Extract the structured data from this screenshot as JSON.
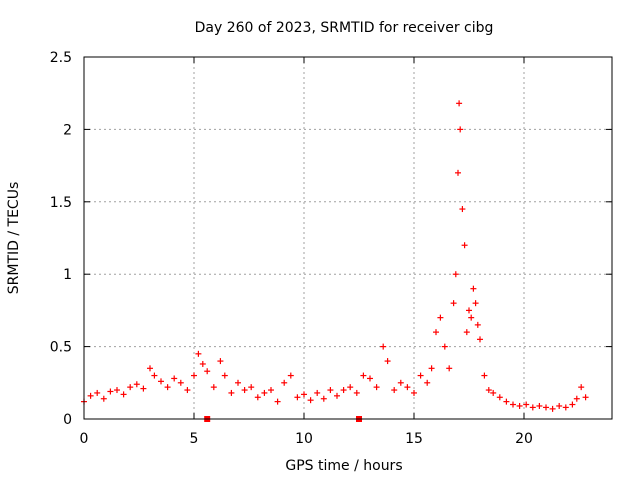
{
  "chart_data": {
    "type": "scatter",
    "title": "Day 260 of 2023, SRMTID for receiver cibg",
    "xlabel": "GPS time / hours",
    "ylabel": "SRMTID / TECUs",
    "xlim": [
      0,
      24
    ],
    "ylim": [
      0,
      2.5
    ],
    "xticks": [
      0,
      5,
      10,
      15,
      20
    ],
    "yticks": [
      0,
      0.5,
      1,
      1.5,
      2,
      2.5
    ],
    "xtick_labels": [
      "0",
      "5",
      "10",
      "15",
      "20"
    ],
    "ytick_labels": [
      "0",
      "0.5",
      "1",
      "1.5",
      "2",
      "2.5"
    ],
    "grid": true,
    "marker": "plus",
    "color": "#ff0000",
    "series": [
      {
        "name": "SRMTID",
        "x": [
          0.0,
          0.3,
          0.6,
          0.9,
          1.2,
          1.5,
          1.8,
          2.1,
          2.4,
          2.7,
          3.0,
          3.2,
          3.5,
          3.8,
          4.1,
          4.4,
          4.7,
          5.0,
          5.2,
          5.4,
          5.6,
          5.9,
          6.2,
          6.4,
          6.7,
          7.0,
          7.3,
          7.6,
          7.9,
          8.2,
          8.5,
          8.8,
          9.1,
          9.4,
          9.7,
          10.0,
          10.3,
          10.6,
          10.9,
          11.2,
          11.5,
          11.8,
          12.1,
          12.4,
          12.7,
          13.0,
          13.3,
          13.6,
          13.8,
          14.1,
          14.4,
          14.7,
          15.0,
          15.3,
          15.6,
          15.8,
          16.0,
          16.2,
          16.4,
          16.6,
          16.8,
          16.9,
          17.0,
          17.05,
          17.1,
          17.2,
          17.3,
          17.4,
          17.5,
          17.6,
          17.7,
          17.8,
          17.9,
          18.0,
          18.2,
          18.4,
          18.6,
          18.9,
          19.2,
          19.5,
          19.8,
          20.1,
          20.4,
          20.7,
          21.0,
          21.3,
          21.6,
          21.9,
          22.2,
          22.4,
          22.6,
          22.8
        ],
        "y": [
          0.12,
          0.16,
          0.18,
          0.14,
          0.19,
          0.2,
          0.17,
          0.22,
          0.24,
          0.21,
          0.35,
          0.3,
          0.26,
          0.22,
          0.28,
          0.25,
          0.2,
          0.3,
          0.45,
          0.38,
          0.33,
          0.22,
          0.4,
          0.3,
          0.18,
          0.25,
          0.2,
          0.22,
          0.15,
          0.18,
          0.2,
          0.12,
          0.25,
          0.3,
          0.15,
          0.17,
          0.13,
          0.18,
          0.14,
          0.2,
          0.16,
          0.2,
          0.22,
          0.18,
          0.3,
          0.28,
          0.22,
          0.5,
          0.4,
          0.2,
          0.25,
          0.22,
          0.18,
          0.3,
          0.25,
          0.35,
          0.6,
          0.7,
          0.5,
          0.35,
          0.8,
          1.0,
          1.7,
          2.18,
          2.0,
          1.45,
          1.2,
          0.6,
          0.75,
          0.7,
          0.9,
          0.8,
          0.65,
          0.55,
          0.3,
          0.2,
          0.18,
          0.15,
          0.12,
          0.1,
          0.09,
          0.1,
          0.08,
          0.09,
          0.08,
          0.07,
          0.09,
          0.08,
          0.1,
          0.14,
          0.22,
          0.15
        ]
      }
    ],
    "outliers": [
      {
        "x": 5.6,
        "y": 0.0
      },
      {
        "x": 12.5,
        "y": 0.0
      }
    ]
  }
}
